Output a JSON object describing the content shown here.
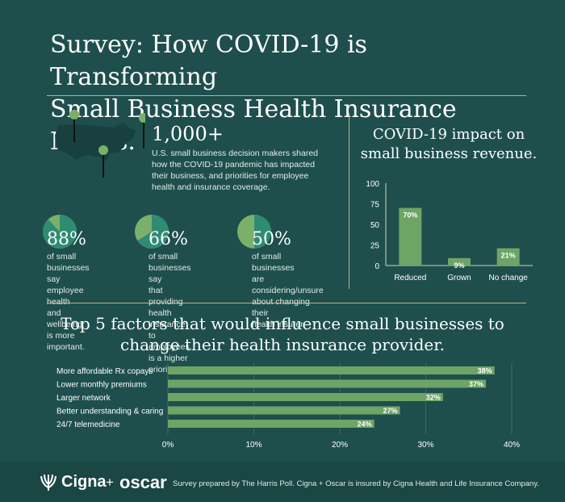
{
  "header": {
    "title_line1": "Survey: How COVID-19 is Transforming",
    "title_line2": "Small Business Health Insurance Needs."
  },
  "survey": {
    "count": "1,000+",
    "description": "U.S. small business decision makers shared how the COVID-19 pandemic has impacted their business, and priorities for employee health and insurance coverage."
  },
  "stats": [
    {
      "value": 88,
      "label": "88%",
      "lines": [
        "of small businesses",
        "say employee health",
        "and wellbeing is more",
        "important."
      ]
    },
    {
      "value": 66,
      "label": "66%",
      "lines": [
        "of small businesses say",
        "that providing health",
        "insurance to employees",
        "is a higher priority."
      ]
    },
    {
      "value": 50,
      "label": "50%",
      "lines": [
        "of small businesses",
        "are considering/unsure",
        "about changing their",
        "health insurer."
      ]
    }
  ],
  "chart_data": [
    {
      "type": "bar",
      "title_line1": "COVID-19 impact on",
      "title_line2": "small business revenue.",
      "categories": [
        "Reduced",
        "Grown",
        "No change"
      ],
      "values": [
        70,
        9,
        21
      ],
      "data_labels": [
        "70%",
        "9%",
        "21%"
      ],
      "ylim": [
        0,
        100
      ],
      "yticks": [
        0,
        25,
        50,
        75,
        100
      ],
      "xlabel": "",
      "ylabel": "",
      "grid": false
    },
    {
      "type": "bar",
      "orientation": "horizontal",
      "title_line1": "Top 5 factors that would influence small businesses to",
      "title_line2": "change their health insurance provider.",
      "categories": [
        "More affordable Rx copays",
        "Lower monthly premiums",
        "Larger network",
        "Better understanding & caring",
        "24/7 telemedicine"
      ],
      "values": [
        38,
        37,
        32,
        27,
        24
      ],
      "data_labels": [
        "38%",
        "37%",
        "32%",
        "27%",
        "24%"
      ],
      "xlim": [
        0,
        40
      ],
      "xticks": [
        0,
        10,
        20,
        30,
        40
      ],
      "xtick_labels": [
        "0%",
        "10%",
        "20%",
        "30%",
        "40%"
      ],
      "grid": true
    }
  ],
  "footer": {
    "brand_cigna": "Cigna",
    "brand_plus": "+",
    "brand_oscar": "oscar",
    "note": "Survey prepared by The Harris Poll. Cigna + Oscar is insured by Cigna Health and Life Insurance Company."
  },
  "colors": {
    "background": "#1e4f4d",
    "bar": "#6ea466",
    "pie_main": "#2f8c72",
    "pie_rest": "#7bb06a",
    "rule": "#b9b089"
  }
}
